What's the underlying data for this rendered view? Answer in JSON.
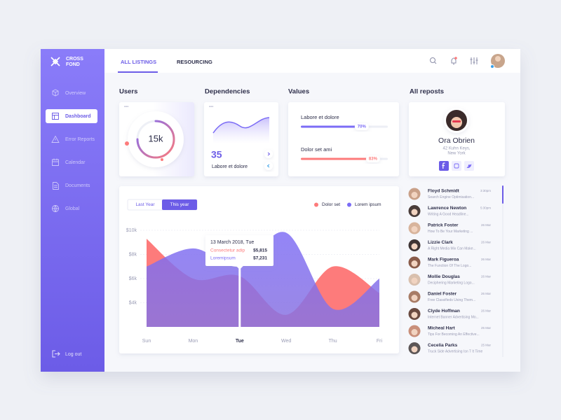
{
  "sidebar": {
    "logo": [
      "CROSS",
      "FOND"
    ],
    "nav": [
      "Overview",
      "Dashboard",
      "Error Reports",
      "Calendar",
      "Documents",
      "Global"
    ],
    "logout": "Log out"
  },
  "topbar": {
    "tabs": [
      "ALL LISTINGS",
      "RESOURCING"
    ]
  },
  "users": {
    "title": "Users",
    "value": "15k"
  },
  "dependencies": {
    "title": "Dependencies",
    "value": 35,
    "label": "Labore et dolore"
  },
  "values": {
    "title": "Values",
    "items": [
      {
        "label": "Labore et dolore",
        "value": 70,
        "value_label": "70%",
        "color": "#7b6cf6"
      },
      {
        "label": "Dolor set ami",
        "value": 83,
        "value_label": "83%",
        "color": "#fd7b7b"
      }
    ]
  },
  "profile": {
    "title": "All reposts",
    "name": "Ora Obrien",
    "address": [
      "42 Kuhn Keys,",
      "New York"
    ]
  },
  "chart_data": {
    "type": "area",
    "toggle": [
      "Last Year",
      "This year"
    ],
    "categories": [
      "Sun",
      "Mon",
      "Tue",
      "Wed",
      "Thu",
      "Fri"
    ],
    "series": [
      {
        "name": "Dolor set",
        "color": "#fd7b7b",
        "values": [
          9300,
          6000,
          6200,
          3000,
          7000,
          4800
        ]
      },
      {
        "name": "Lorem ipsum",
        "color": "#7b6cf6",
        "values": [
          7000,
          8500,
          7000,
          9800,
          3500,
          6000
        ]
      }
    ],
    "ylim": [
      2000,
      10000
    ],
    "yticks": [
      {
        "value": 10000,
        "label": "$10k"
      },
      {
        "value": 8000,
        "label": "$8k"
      },
      {
        "value": 6000,
        "label": "$6k"
      },
      {
        "value": 4000,
        "label": "$4k"
      }
    ],
    "tooltip": {
      "title": "13 March 2018, Tue",
      "rows": [
        {
          "name": "Consectetur adip",
          "value": "$5,815"
        },
        {
          "name": "Loremipsum",
          "value": "$7,231"
        }
      ]
    }
  },
  "messages": [
    {
      "name": "Floyd Schmidt",
      "text": "Search Engine Optimisation...",
      "time": "3:30pm"
    },
    {
      "name": "Lawrence Newton",
      "text": "Writing A Good Headline...",
      "time": "5:30pm"
    },
    {
      "name": "Patrick Foster",
      "text": "How To Be Your Marketing ...",
      "time": "26 Mar"
    },
    {
      "name": "Lizzie Clark",
      "text": "A Right Media Mix Can Make...",
      "time": "26 Mar"
    },
    {
      "name": "Mark Figueroa",
      "text": "The Function Of The Logo...",
      "time": "26 Mar"
    },
    {
      "name": "Mollie Douglas",
      "text": "Deciphering Marketing Logo...",
      "time": "26 Mar"
    },
    {
      "name": "Daniel Foster",
      "text": "Free Classifieds Using Them...",
      "time": "26 Mar"
    },
    {
      "name": "Clyde Hoffman",
      "text": "Internet Banner Advertising Mo...",
      "time": "26 Mar"
    },
    {
      "name": "Micheal Hart",
      "text": "Tips For Becoming An Effective...",
      "time": "25 Mar"
    },
    {
      "name": "Cecelia Parks",
      "text": "Truck Side Advertising Isn T It Time",
      "time": "25 Mar"
    }
  ]
}
